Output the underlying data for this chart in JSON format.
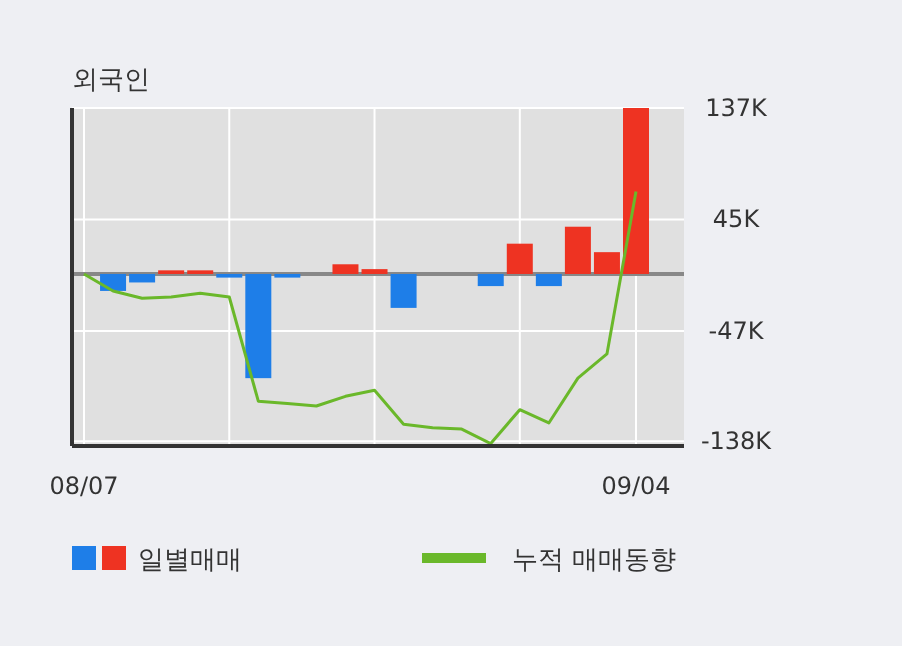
{
  "chart_data": {
    "type": "bar",
    "title": "외국인",
    "categories": [
      "08/07",
      null,
      null,
      null,
      null,
      null,
      null,
      null,
      null,
      null,
      null,
      null,
      null,
      null,
      null,
      null,
      null,
      null,
      null,
      "09/04"
    ],
    "series": [
      {
        "name": "일별매매",
        "colors": [
          "#ee3322",
          "#1e7ee8",
          "#1e7ee8",
          "#ee3322",
          "#ee3322",
          "#1e7ee8",
          "#1e7ee8",
          "#1e7ee8",
          "#ee3322",
          "#ee3322",
          "#ee3322",
          "#1e7ee8",
          "#ee3322",
          "#ee3322",
          "#1e7ee8",
          "#ee3322",
          "#1e7ee8",
          "#ee3322",
          "#ee3322",
          "#ee3322"
        ],
        "values": [
          0,
          -14,
          -7,
          3,
          3,
          -3,
          -86,
          -3,
          0,
          8,
          4,
          -28,
          0,
          0,
          -10,
          25,
          -10,
          39,
          18,
          137
        ]
      },
      {
        "name": "누적 매매동향",
        "type": "line",
        "color": "#6ab82a",
        "values": [
          0,
          -14,
          -20,
          -19,
          -16,
          -19,
          -105,
          -107,
          -109,
          -101,
          -96,
          -124,
          -127,
          -128,
          -140,
          -112,
          -123,
          -86,
          -66,
          68
        ]
      }
    ],
    "ylim": [
      -142,
      137
    ],
    "yticks": [
      {
        "value": 137,
        "label": "137K"
      },
      {
        "value": 45,
        "label": "45K"
      },
      {
        "value": -47,
        "label": "-47K"
      },
      {
        "value": -138,
        "label": "-138K"
      }
    ],
    "grid": true,
    "legend": "bottom"
  }
}
